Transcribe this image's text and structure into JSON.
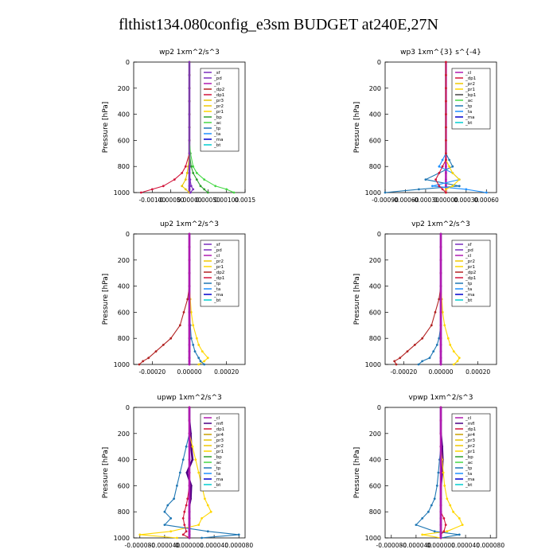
{
  "figure_title": "flthist134.080config_e3sm  BUDGET at240E,27N",
  "colors": {
    "sf": "#7b2fbe",
    "pd": "#7b2fbe",
    "cl": "#b01ab0",
    "dp2": "#b22222",
    "dp1": "#d2143a",
    "pr3": "#e8c400",
    "pr2": "#f0c800",
    "pr1": "#ffd700",
    "bp": "#2ea02e",
    "ac": "#45d845",
    "tp": "#1f77b4",
    "ta": "#1e90ff",
    "ma": "#0000cd",
    "bt": "#00ced1",
    "mfl": "#4b0082",
    "pr4": "#c8a000"
  },
  "chart_data": [
    {
      "type": "line",
      "title": "wp2   1xm^2/s^3",
      "ylabel": "Pressure  [hPa]",
      "ylim": [
        1000,
        0
      ],
      "xlim": [
        -0.0015,
        0.0015
      ],
      "xticks": [
        "-0.00100",
        "-0.00050",
        "0.00000",
        "0.00050",
        "0.00100",
        "0.0015"
      ],
      "yticks": [
        "0",
        "200",
        "400",
        "600",
        "800",
        "1000"
      ],
      "y": [
        0,
        100,
        200,
        300,
        400,
        500,
        600,
        700,
        800,
        850,
        900,
        950,
        975,
        1000
      ],
      "legend": [
        "_sf",
        "_pd",
        "_cl",
        "_dp2",
        "_dp1",
        "_pr3",
        "_pr2",
        "_pr1",
        "_bp",
        "_ac",
        "_tp",
        "_ta",
        "_ma",
        "_bt"
      ],
      "series": [
        {
          "name": "_sf",
          "key": "sf",
          "values": [
            0,
            0,
            0,
            0,
            0,
            0,
            0,
            0,
            0,
            0,
            0,
            0,
            0,
            0
          ]
        },
        {
          "name": "_dp1",
          "key": "dp1",
          "values": [
            0,
            0,
            0,
            0,
            0,
            0,
            0,
            0,
            -0.0001,
            -0.0002,
            -0.0004,
            -0.0007,
            -0.001,
            -0.0013
          ]
        },
        {
          "name": "_ac",
          "key": "ac",
          "values": [
            0,
            0,
            0,
            0,
            0,
            0,
            0,
            3e-05,
            0.0001,
            0.0002,
            0.0004,
            0.0007,
            0.001,
            0.0012
          ]
        },
        {
          "name": "_bp",
          "key": "bp",
          "values": [
            0,
            0,
            0,
            0,
            0,
            0,
            0,
            0,
            5e-05,
            0.0001,
            0.0002,
            0.0003,
            0.0004,
            0.0005
          ]
        },
        {
          "name": "_pr3",
          "key": "pr3",
          "values": [
            0,
            0,
            0,
            0,
            0,
            0,
            0,
            0,
            -3e-05,
            -6e-05,
            -0.0001,
            -0.0002,
            -0.0001,
            0
          ]
        },
        {
          "name": "_pd",
          "key": "pd",
          "values": [
            0,
            0,
            0,
            0,
            0,
            0,
            0,
            0,
            0,
            0,
            2e-05,
            5e-05,
            0.0001,
            3e-05
          ]
        }
      ]
    },
    {
      "type": "line",
      "title": "wp3   1xm^{3} s^{-4}",
      "ylabel": "Pressure  [hPa]",
      "ylim": [
        1000,
        0
      ],
      "xlim": [
        -0.0009,
        0.00075
      ],
      "xticks": [
        "-0.00090",
        "-0.00060",
        "-0.00030",
        "0.00000",
        "0.00030",
        "0.00060"
      ],
      "yticks": [
        "0",
        "200",
        "400",
        "600",
        "800",
        "1000"
      ],
      "y": [
        0,
        100,
        200,
        300,
        400,
        500,
        600,
        700,
        750,
        800,
        850,
        900,
        950,
        975,
        1000
      ],
      "legend": [
        "_cl",
        "_dp1",
        "_pr2",
        "_pr1",
        "_bp1",
        "_ac",
        "_tp",
        "_ta",
        "_ma",
        "_bt"
      ],
      "series": [
        {
          "name": "_cl",
          "key": "cl",
          "values": [
            0,
            0,
            0,
            0,
            0,
            0,
            0,
            0,
            0,
            0,
            0,
            0,
            0,
            0,
            0
          ]
        },
        {
          "name": "_tp",
          "key": "tp",
          "values": [
            0,
            0,
            0,
            0,
            0,
            0,
            0,
            0,
            5e-05,
            0.0001,
            -0.0001,
            -0.0003,
            0.0002,
            -0.0004,
            -0.0009
          ]
        },
        {
          "name": "_ta",
          "key": "ta",
          "values": [
            0,
            0,
            0,
            0,
            0,
            0,
            0,
            0,
            -5e-05,
            -0.0001,
            0.0001,
            0.0002,
            -0.0002,
            0.0003,
            0.0006
          ]
        },
        {
          "name": "_pr1",
          "key": "pr1",
          "values": [
            0,
            0,
            0,
            0,
            0,
            0,
            0,
            0,
            0,
            5e-05,
            0.0001,
            0.0002,
            0.0001,
            0,
            0
          ]
        },
        {
          "name": "_dp1",
          "key": "dp1",
          "values": [
            0,
            0,
            0,
            0,
            0,
            0,
            0,
            0,
            0,
            -5e-05,
            -0.0001,
            -0.00015,
            -0.0001,
            -5e-05,
            0
          ]
        }
      ]
    },
    {
      "type": "line",
      "title": "up2   1xm^2/s^3",
      "ylabel": "Pressure  [hPa]",
      "ylim": [
        1000,
        0
      ],
      "xlim": [
        -0.0003,
        0.0003
      ],
      "xticks": [
        "-0.00020",
        "0.00000",
        "0.00020"
      ],
      "yticks": [
        "0",
        "200",
        "400",
        "600",
        "800",
        "1000"
      ],
      "y": [
        0,
        100,
        200,
        300,
        400,
        500,
        600,
        700,
        800,
        850,
        900,
        950,
        975,
        1000
      ],
      "legend": [
        "_sf",
        "_pd",
        "_cl",
        "_pr2",
        "_pr1",
        "_dp2",
        "_dp1",
        "_tp",
        "_ta",
        "_ma",
        "_bt"
      ],
      "series": [
        {
          "name": "_sf",
          "key": "sf",
          "values": [
            0,
            0,
            0,
            0,
            0,
            0,
            0,
            0,
            0,
            0,
            0,
            0,
            0,
            0
          ]
        },
        {
          "name": "_dp2",
          "key": "dp2",
          "values": [
            0,
            0,
            0,
            0,
            0,
            -1e-05,
            -3e-05,
            -5e-05,
            -0.0001,
            -0.00014,
            -0.00018,
            -0.00022,
            -0.00025,
            -0.00027
          ]
        },
        {
          "name": "_pr1",
          "key": "pr1",
          "values": [
            0,
            0,
            0,
            0,
            0,
            5e-06,
            1e-05,
            2e-05,
            4e-05,
            5e-05,
            7e-05,
            0.0001,
            8e-05,
            5e-05
          ]
        },
        {
          "name": "_tp",
          "key": "tp",
          "values": [
            0,
            0,
            0,
            0,
            0,
            0,
            0,
            5e-06,
            1e-05,
            2e-05,
            3e-05,
            5e-05,
            6e-05,
            8e-05
          ]
        },
        {
          "name": "_cl",
          "key": "cl",
          "values": [
            0,
            0,
            0,
            0,
            0,
            0,
            0,
            0,
            0,
            0,
            0,
            0,
            0,
            0
          ]
        }
      ]
    },
    {
      "type": "line",
      "title": "vp2   1xm^2/s^3",
      "ylabel": "Pressure  [hPa]",
      "ylim": [
        1000,
        0
      ],
      "xlim": [
        -0.0003,
        0.0003
      ],
      "xticks": [
        "-0.00020",
        "0.00000",
        "0.00020"
      ],
      "yticks": [
        "0",
        "200",
        "400",
        "600",
        "800",
        "1000"
      ],
      "y": [
        0,
        100,
        200,
        300,
        400,
        500,
        600,
        700,
        800,
        850,
        900,
        950,
        975,
        1000
      ],
      "legend": [
        "_sf",
        "_pd",
        "_cl",
        "_pr2",
        "_pr1",
        "_dp2",
        "_dp1",
        "_tp",
        "_ta",
        "_ma",
        "_bt"
      ],
      "series": [
        {
          "name": "_sf",
          "key": "sf",
          "values": [
            0,
            0,
            0,
            0,
            0,
            0,
            0,
            0,
            0,
            0,
            0,
            0,
            0,
            0
          ]
        },
        {
          "name": "_dp2",
          "key": "dp2",
          "values": [
            0,
            0,
            0,
            0,
            0,
            -1e-05,
            -3e-05,
            -5e-05,
            -0.0001,
            -0.00014,
            -0.00018,
            -0.00022,
            -0.00025,
            -0.00024
          ]
        },
        {
          "name": "_pr1",
          "key": "pr1",
          "values": [
            0,
            0,
            0,
            0,
            0,
            5e-06,
            1e-05,
            2e-05,
            4e-05,
            5e-05,
            7e-05,
            0.0001,
            9e-05,
            7e-05
          ]
        },
        {
          "name": "_tp",
          "key": "tp",
          "values": [
            0,
            0,
            0,
            0,
            0,
            0,
            0,
            0,
            -1e-05,
            -2e-05,
            -4e-05,
            -6e-05,
            -0.0001,
            -0.00012
          ]
        },
        {
          "name": "_cl",
          "key": "cl",
          "values": [
            0,
            0,
            0,
            0,
            0,
            0,
            0,
            0,
            0,
            0,
            0,
            0,
            0,
            0
          ]
        }
      ]
    },
    {
      "type": "line",
      "title": "upwp   1xm^2/s^3",
      "ylabel": "Pressure  [hPa]",
      "ylim": [
        1000,
        0
      ],
      "xlim": [
        -9e-05,
        9e-05
      ],
      "xticks": [
        "-0.000080",
        "-0.000040",
        "0.000000",
        "0.000040",
        "0.000080"
      ],
      "yticks": [
        "0",
        "200",
        "400",
        "600",
        "800",
        "1000"
      ],
      "y": [
        0,
        100,
        200,
        300,
        400,
        500,
        600,
        700,
        750,
        800,
        850,
        900,
        950,
        975,
        1000
      ],
      "legend": [
        "_cl",
        "_mfl",
        "_dp1",
        "_pr4",
        "_pr3",
        "_pr2",
        "_pr1",
        "_bp",
        "_ac",
        "_tp",
        "_ta",
        "_ma",
        "_bt"
      ],
      "series": [
        {
          "name": "_mfl",
          "key": "mfl",
          "values": [
            0,
            0,
            2e-06,
            3e-06,
            5e-06,
            -4e-06,
            3e-06,
            2e-06,
            0,
            0,
            0,
            0,
            0,
            0,
            0
          ]
        },
        {
          "name": "_pr1",
          "key": "pr1",
          "values": [
            0,
            0,
            0,
            5e-06,
            1e-05,
            1.5e-05,
            2e-05,
            2.5e-05,
            3e-05,
            3.5e-05,
            2e-05,
            1.5e-05,
            -3e-05,
            -8e-05,
            -2e-05
          ]
        },
        {
          "name": "_tp",
          "key": "tp",
          "values": [
            0,
            0,
            0,
            -5e-06,
            -1e-05,
            -1.5e-05,
            -2e-05,
            -2.5e-05,
            -3.5e-05,
            -4e-05,
            -3e-05,
            -4e-05,
            3e-05,
            8e-05,
            2e-05
          ]
        },
        {
          "name": "_dp1",
          "key": "dp1",
          "values": [
            0,
            0,
            0,
            0,
            0,
            0,
            0,
            -3e-06,
            -5e-06,
            -8e-06,
            -1e-05,
            -8e-06,
            -5e-06,
            -1e-05,
            0
          ]
        },
        {
          "name": "_cl",
          "key": "cl",
          "values": [
            0,
            0,
            0,
            0,
            0,
            0,
            0,
            0,
            0,
            0,
            0,
            0,
            0,
            0,
            0
          ]
        }
      ]
    },
    {
      "type": "line",
      "title": "vpwp   1xm^2/s^3",
      "ylabel": "Pressure  [hPa]",
      "ylim": [
        1000,
        0
      ],
      "xlim": [
        -9e-05,
        9e-05
      ],
      "xticks": [
        "-0.000080",
        "-0.000040",
        "0.000000",
        "0.000040",
        "0.000080"
      ],
      "yticks": [
        "0",
        "200",
        "400",
        "600",
        "800",
        "1000"
      ],
      "y": [
        0,
        100,
        200,
        300,
        400,
        500,
        600,
        700,
        750,
        800,
        850,
        900,
        950,
        975,
        1000
      ],
      "legend": [
        "_cl",
        "_mfl",
        "_dp1",
        "_pr4",
        "_pr3",
        "_pr2",
        "_pr1",
        "_bp",
        "_ac",
        "_tp",
        "_ta",
        "_ma",
        "_bt"
      ],
      "series": [
        {
          "name": "_mfl",
          "key": "mfl",
          "values": [
            0,
            0,
            0,
            2e-06,
            3e-06,
            2e-06,
            0,
            0,
            0,
            0,
            0,
            0,
            0,
            0,
            0
          ]
        },
        {
          "name": "_pr1",
          "key": "pr1",
          "values": [
            0,
            0,
            0,
            0,
            2e-06,
            4e-06,
            6e-06,
            1e-05,
            1.5e-05,
            2e-05,
            3e-05,
            3.5e-05,
            1e-05,
            -3e-05,
            0
          ]
        },
        {
          "name": "_tp",
          "key": "tp",
          "values": [
            0,
            0,
            0,
            0,
            -2e-06,
            -4e-06,
            -6e-06,
            -1e-05,
            -1.5e-05,
            -2e-05,
            -3e-05,
            -4e-05,
            -1e-05,
            3e-05,
            0
          ]
        },
        {
          "name": "_dp1",
          "key": "dp1",
          "values": [
            0,
            0,
            0,
            0,
            0,
            0,
            0,
            0,
            0,
            0,
            5e-06,
            8e-06,
            5e-06,
            0,
            0
          ]
        },
        {
          "name": "_cl",
          "key": "cl",
          "values": [
            0,
            0,
            0,
            0,
            0,
            0,
            0,
            0,
            0,
            0,
            0,
            0,
            0,
            0,
            0
          ]
        }
      ]
    }
  ]
}
